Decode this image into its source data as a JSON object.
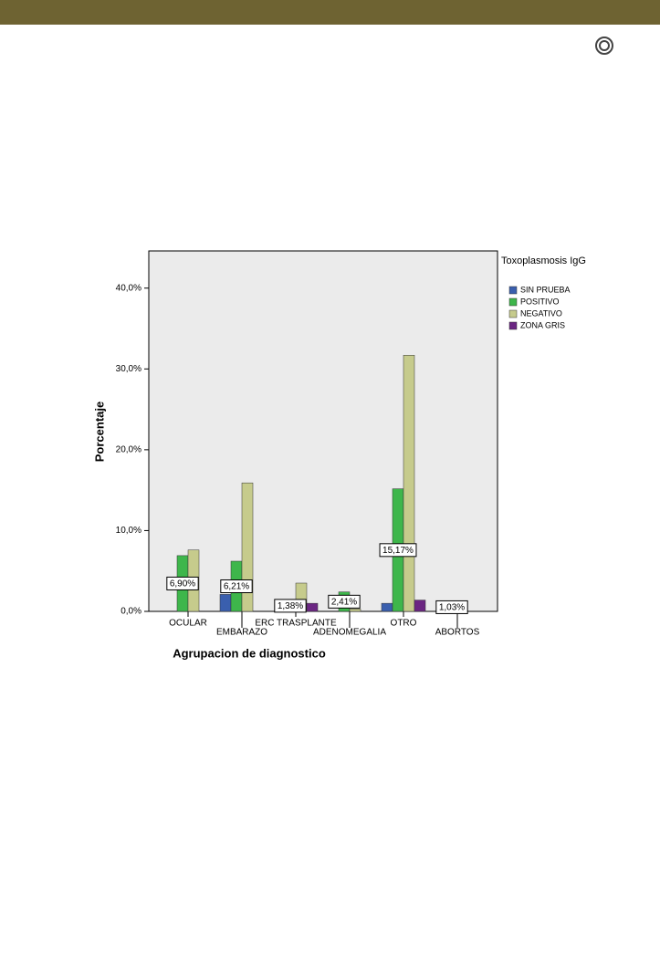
{
  "chart_data": {
    "type": "bar",
    "x_label": "Agrupacion de diagnostico",
    "y_label": "Porcentaje",
    "legend_title": "Toxoplasmosis IgG",
    "legend": "right",
    "categories": [
      "OCULAR",
      "EMBARAZO",
      "ERC TRASPLANTE",
      "ADENOMEGALIA",
      "OTRO",
      "ABORTOS"
    ],
    "series": [
      {
        "name": "SIN PRUEBA",
        "color": "#3a5fae",
        "values": [
          0,
          2.1,
          0,
          0,
          1.0,
          0
        ]
      },
      {
        "name": "POSITIVO",
        "color": "#3eb64b",
        "values": [
          6.9,
          6.21,
          1.38,
          2.41,
          15.17,
          1.03
        ],
        "value_labels": [
          "6,90%",
          "6,21%",
          "1,38%",
          "2,41%",
          "15,17%",
          "1,03%"
        ]
      },
      {
        "name": "NEGATIVO",
        "color": "#c6cb8c",
        "values": [
          7.6,
          15.9,
          3.5,
          0.3,
          31.7,
          0
        ]
      },
      {
        "name": "ZONA GRIS",
        "color": "#6b2682",
        "values": [
          0,
          0,
          1.0,
          0,
          1.4,
          0
        ]
      }
    ],
    "ylim": [
      0,
      44.6
    ],
    "yticks": [
      {
        "value": 0,
        "label": "0,0%"
      },
      {
        "value": 10,
        "label": "10,0%"
      },
      {
        "value": 20,
        "label": "20,0%"
      },
      {
        "value": 30,
        "label": "30,0%"
      },
      {
        "value": 40,
        "label": "40,0%"
      }
    ]
  }
}
